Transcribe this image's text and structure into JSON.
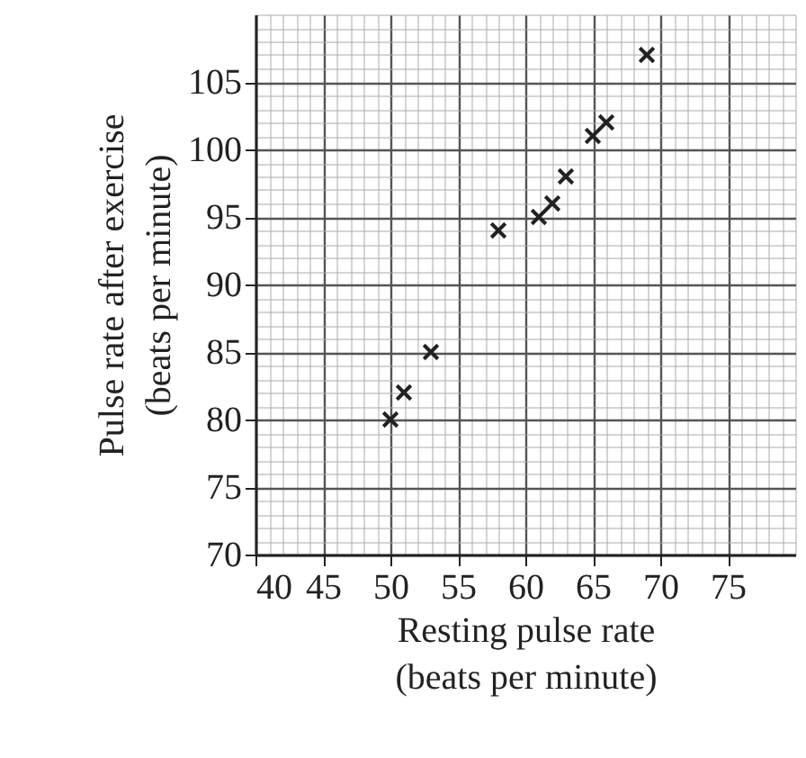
{
  "chart_data": {
    "type": "scatter",
    "xlabel": "Resting pulse rate\n(beats per minute)",
    "ylabel": "Pulse rate after exercise\n(beats per minute)",
    "x": [
      50,
      51,
      53,
      58,
      61,
      62,
      63,
      65,
      66,
      69
    ],
    "series": [
      {
        "color": "#222222",
        "values": [
          80,
          82,
          85,
          94,
          95,
          96,
          98,
          101,
          102,
          107
        ]
      }
    ],
    "xlim": [
      40,
      80
    ],
    "ylim": [
      70,
      110
    ],
    "xticks": [
      40,
      45,
      50,
      55,
      60,
      65,
      70,
      75
    ],
    "yticks": [
      70,
      75,
      80,
      85,
      90,
      95,
      100,
      105
    ],
    "grid": true,
    "marker": "cross"
  }
}
